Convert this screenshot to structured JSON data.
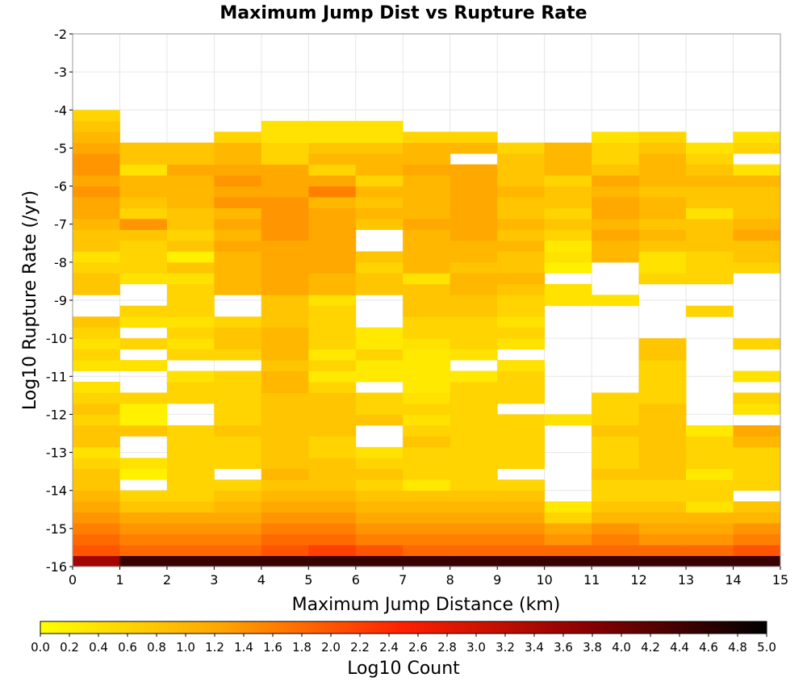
{
  "chart_data": {
    "type": "heatmap",
    "title": "Maximum Jump Dist vs Rupture Rate",
    "xlabel": "Maximum Jump Distance (km)",
    "ylabel": "Log10 Rupture Rate (/yr)",
    "xlim": [
      0,
      15
    ],
    "ylim": [
      -16,
      -2
    ],
    "x_ticks": [
      "0",
      "1",
      "2",
      "3",
      "4",
      "5",
      "6",
      "7",
      "8",
      "9",
      "10",
      "11",
      "12",
      "13",
      "14",
      "15"
    ],
    "y_ticks": [
      "-2",
      "-3",
      "-4",
      "-5",
      "-6",
      "-7",
      "-8",
      "-9",
      "-10",
      "-11",
      "-12",
      "-13",
      "-14",
      "-15",
      "-16"
    ],
    "x_bin_width": 1,
    "y_bin_width": 0.285714,
    "grid": true,
    "colorbar": {
      "label": "Log10 Count",
      "range": [
        0.0,
        5.0
      ],
      "ticks": [
        "0.0",
        "0.2",
        "0.4",
        "0.6",
        "0.8",
        "1.0",
        "1.2",
        "1.4",
        "1.6",
        "1.8",
        "2.0",
        "2.2",
        "2.4",
        "2.6",
        "2.8",
        "3.0",
        "3.2",
        "3.4",
        "3.6",
        "3.8",
        "4.0",
        "4.2",
        "4.4",
        "4.6",
        "4.8",
        "5.0"
      ],
      "colors": [
        "#ffff00",
        "#ffa500",
        "#ff2000",
        "#8b0000",
        "#000000"
      ]
    },
    "cells_note": "rows from rupture rate -16 upward; columns x=0..14; null = empty",
    "cells": [
      [
        3.5,
        4.5,
        4.5,
        4.5,
        4.5,
        4.5,
        4.5,
        4.5,
        4.5,
        4.5,
        4.5,
        4.5,
        4.5,
        4.5,
        4.5
      ],
      [
        2.0,
        1.8,
        1.8,
        1.8,
        2.0,
        2.2,
        2.0,
        1.8,
        1.8,
        1.8,
        1.8,
        1.8,
        1.8,
        1.8,
        2.0
      ],
      [
        1.8,
        1.6,
        1.6,
        1.6,
        1.8,
        1.8,
        1.6,
        1.6,
        1.6,
        1.6,
        1.4,
        1.6,
        1.4,
        1.4,
        1.6
      ],
      [
        1.6,
        1.4,
        1.4,
        1.4,
        1.6,
        1.6,
        1.4,
        1.4,
        1.4,
        1.4,
        1.2,
        1.4,
        1.2,
        1.2,
        1.4
      ],
      [
        1.4,
        1.2,
        1.2,
        1.2,
        1.4,
        1.4,
        1.2,
        1.2,
        1.2,
        1.2,
        0.6,
        1.0,
        1.0,
        1.0,
        1.0
      ],
      [
        1.2,
        0.8,
        0.8,
        1.0,
        1.2,
        1.2,
        1.0,
        1.0,
        1.0,
        1.0,
        0.3,
        0.8,
        0.8,
        0.4,
        0.8
      ],
      [
        1.0,
        0.6,
        0.6,
        0.8,
        1.0,
        1.0,
        0.8,
        0.8,
        0.8,
        0.8,
        null,
        0.6,
        0.6,
        0.6,
        null
      ],
      [
        0.8,
        null,
        0.6,
        0.6,
        0.8,
        0.8,
        0.6,
        0.3,
        0.6,
        0.6,
        null,
        0.6,
        0.6,
        0.6,
        0.6
      ],
      [
        0.8,
        0.2,
        0.6,
        null,
        1.0,
        0.8,
        0.8,
        0.6,
        0.6,
        null,
        null,
        0.8,
        0.8,
        0.3,
        0.6
      ],
      [
        0.6,
        0.4,
        0.6,
        0.6,
        0.8,
        0.8,
        0.6,
        0.6,
        0.6,
        0.6,
        null,
        0.6,
        0.8,
        0.6,
        0.6
      ],
      [
        0.4,
        null,
        0.6,
        0.6,
        0.8,
        0.6,
        0.4,
        0.6,
        0.6,
        0.6,
        null,
        0.6,
        0.8,
        0.6,
        0.6
      ],
      [
        0.8,
        null,
        0.6,
        0.6,
        0.8,
        0.6,
        null,
        0.8,
        0.6,
        0.6,
        null,
        0.6,
        0.8,
        0.6,
        1.0
      ],
      [
        0.8,
        0.8,
        0.6,
        0.8,
        0.8,
        0.8,
        null,
        0.6,
        0.6,
        0.6,
        null,
        0.8,
        0.8,
        0.3,
        1.2
      ],
      [
        0.6,
        0.2,
        null,
        0.6,
        0.8,
        0.8,
        0.8,
        0.4,
        0.6,
        0.6,
        0.4,
        0.6,
        0.8,
        null,
        null
      ],
      [
        0.8,
        0.2,
        null,
        0.6,
        0.8,
        0.8,
        0.6,
        0.6,
        0.6,
        null,
        null,
        0.6,
        0.8,
        null,
        0.4
      ],
      [
        0.6,
        0.6,
        0.6,
        0.6,
        0.8,
        0.8,
        0.6,
        0.4,
        0.6,
        0.6,
        null,
        0.6,
        0.6,
        null,
        0.6
      ],
      [
        0.4,
        null,
        0.6,
        0.6,
        1.0,
        0.6,
        null,
        0.3,
        0.6,
        0.6,
        null,
        null,
        0.6,
        null,
        null
      ],
      [
        null,
        null,
        0.4,
        0.6,
        1.0,
        0.3,
        0.3,
        0.3,
        0.3,
        0.6,
        null,
        null,
        0.6,
        null,
        0.4
      ],
      [
        0.4,
        0.4,
        null,
        null,
        0.8,
        0.6,
        0.3,
        0.3,
        null,
        0.4,
        null,
        null,
        0.6,
        null,
        null
      ],
      [
        0.6,
        null,
        0.6,
        0.6,
        1.0,
        0.3,
        0.6,
        0.3,
        0.4,
        null,
        null,
        null,
        0.8,
        null,
        null
      ],
      [
        0.4,
        0.6,
        0.4,
        0.8,
        1.0,
        0.6,
        0.3,
        0.4,
        0.6,
        0.4,
        null,
        null,
        0.8,
        null,
        0.6
      ],
      [
        0.6,
        null,
        0.6,
        0.8,
        1.0,
        0.6,
        0.3,
        0.6,
        0.6,
        0.6,
        null,
        null,
        null,
        null,
        null
      ],
      [
        0.8,
        0.4,
        0.4,
        0.6,
        0.8,
        0.6,
        null,
        0.6,
        0.6,
        0.4,
        null,
        null,
        null,
        null,
        null
      ],
      [
        null,
        0.6,
        0.6,
        null,
        0.8,
        0.6,
        null,
        0.8,
        0.8,
        0.6,
        null,
        null,
        null,
        0.6,
        null
      ],
      [
        null,
        null,
        0.6,
        null,
        0.8,
        0.4,
        null,
        0.8,
        0.8,
        0.6,
        0.4,
        0.4,
        null,
        null,
        null
      ],
      [
        0.8,
        null,
        0.6,
        1.0,
        1.2,
        1.0,
        0.8,
        0.8,
        1.0,
        0.8,
        0.4,
        null,
        null,
        null,
        null
      ],
      [
        0.8,
        0.4,
        0.4,
        1.0,
        1.2,
        1.0,
        0.8,
        0.4,
        1.0,
        1.0,
        null,
        null,
        0.6,
        0.6,
        null
      ],
      [
        0.6,
        0.6,
        0.8,
        1.0,
        1.2,
        1.2,
        0.6,
        1.0,
        0.8,
        0.8,
        0.2,
        null,
        0.4,
        0.6,
        0.6
      ],
      [
        0.4,
        0.6,
        0.2,
        1.0,
        1.2,
        1.2,
        0.8,
        1.0,
        1.0,
        0.8,
        0.4,
        1.0,
        0.4,
        0.6,
        0.8
      ],
      [
        0.8,
        0.6,
        0.8,
        1.2,
        1.2,
        1.2,
        null,
        1.0,
        1.0,
        1.0,
        0.3,
        1.0,
        0.8,
        0.8,
        0.8
      ],
      [
        0.8,
        0.8,
        0.6,
        1.0,
        1.4,
        1.2,
        null,
        1.0,
        1.2,
        0.8,
        0.6,
        1.2,
        1.0,
        0.8,
        1.2
      ],
      [
        1.0,
        1.4,
        0.8,
        1.2,
        1.4,
        1.2,
        0.8,
        1.2,
        1.2,
        1.0,
        0.8,
        1.0,
        0.8,
        0.8,
        1.0
      ],
      [
        1.2,
        0.6,
        0.8,
        1.0,
        1.4,
        1.2,
        1.0,
        1.0,
        1.2,
        0.8,
        0.6,
        1.2,
        1.0,
        0.4,
        0.8
      ],
      [
        1.2,
        0.8,
        1.0,
        1.4,
        1.4,
        1.0,
        0.8,
        1.0,
        1.2,
        0.8,
        0.8,
        1.2,
        1.0,
        0.8,
        0.8
      ],
      [
        1.4,
        1.0,
        1.0,
        1.2,
        1.2,
        1.6,
        1.0,
        1.0,
        1.2,
        1.0,
        0.8,
        1.0,
        0.8,
        0.8,
        0.8
      ],
      [
        1.2,
        1.0,
        1.0,
        1.4,
        1.2,
        1.2,
        0.6,
        1.0,
        1.2,
        0.8,
        0.6,
        1.2,
        1.0,
        1.0,
        1.0
      ],
      [
        1.4,
        0.4,
        1.2,
        1.2,
        1.2,
        0.6,
        1.0,
        1.2,
        1.2,
        0.8,
        1.0,
        0.8,
        1.0,
        0.8,
        0.4
      ],
      [
        1.4,
        0.8,
        0.8,
        1.0,
        0.6,
        1.0,
        1.0,
        1.0,
        null,
        0.8,
        1.0,
        0.6,
        1.0,
        0.6,
        null
      ],
      [
        1.2,
        0.8,
        0.8,
        1.0,
        0.6,
        0.8,
        0.8,
        1.0,
        1.0,
        0.6,
        1.0,
        0.6,
        0.8,
        0.4,
        0.6
      ],
      [
        1.0,
        null,
        null,
        0.6,
        0.4,
        0.4,
        0.4,
        0.6,
        0.6,
        null,
        null,
        0.4,
        0.6,
        null,
        0.4
      ],
      [
        0.8,
        null,
        null,
        null,
        0.4,
        0.4,
        0.4,
        null,
        null,
        null,
        null,
        null,
        null,
        null,
        null
      ],
      [
        0.6,
        null,
        null,
        null,
        null,
        null,
        null,
        null,
        null,
        null,
        null,
        null,
        null,
        null,
        null
      ],
      [
        null,
        null,
        null,
        null,
        null,
        null,
        null,
        null,
        null,
        null,
        null,
        null,
        null,
        null,
        null
      ],
      [
        null,
        null,
        null,
        null,
        null,
        null,
        null,
        null,
        null,
        null,
        null,
        null,
        null,
        null,
        null
      ],
      [
        null,
        null,
        null,
        null,
        null,
        null,
        null,
        null,
        null,
        null,
        null,
        null,
        null,
        null,
        null
      ],
      [
        null,
        null,
        null,
        null,
        null,
        null,
        null,
        null,
        null,
        null,
        null,
        null,
        null,
        null,
        null
      ],
      [
        null,
        null,
        null,
        null,
        null,
        null,
        null,
        null,
        null,
        null,
        null,
        null,
        null,
        null,
        null
      ],
      [
        null,
        null,
        null,
        null,
        null,
        null,
        null,
        null,
        null,
        null,
        null,
        null,
        null,
        null,
        null
      ],
      [
        null,
        null,
        null,
        null,
        null,
        null,
        null,
        null,
        null,
        null,
        null,
        null,
        null,
        null,
        null
      ]
    ]
  }
}
